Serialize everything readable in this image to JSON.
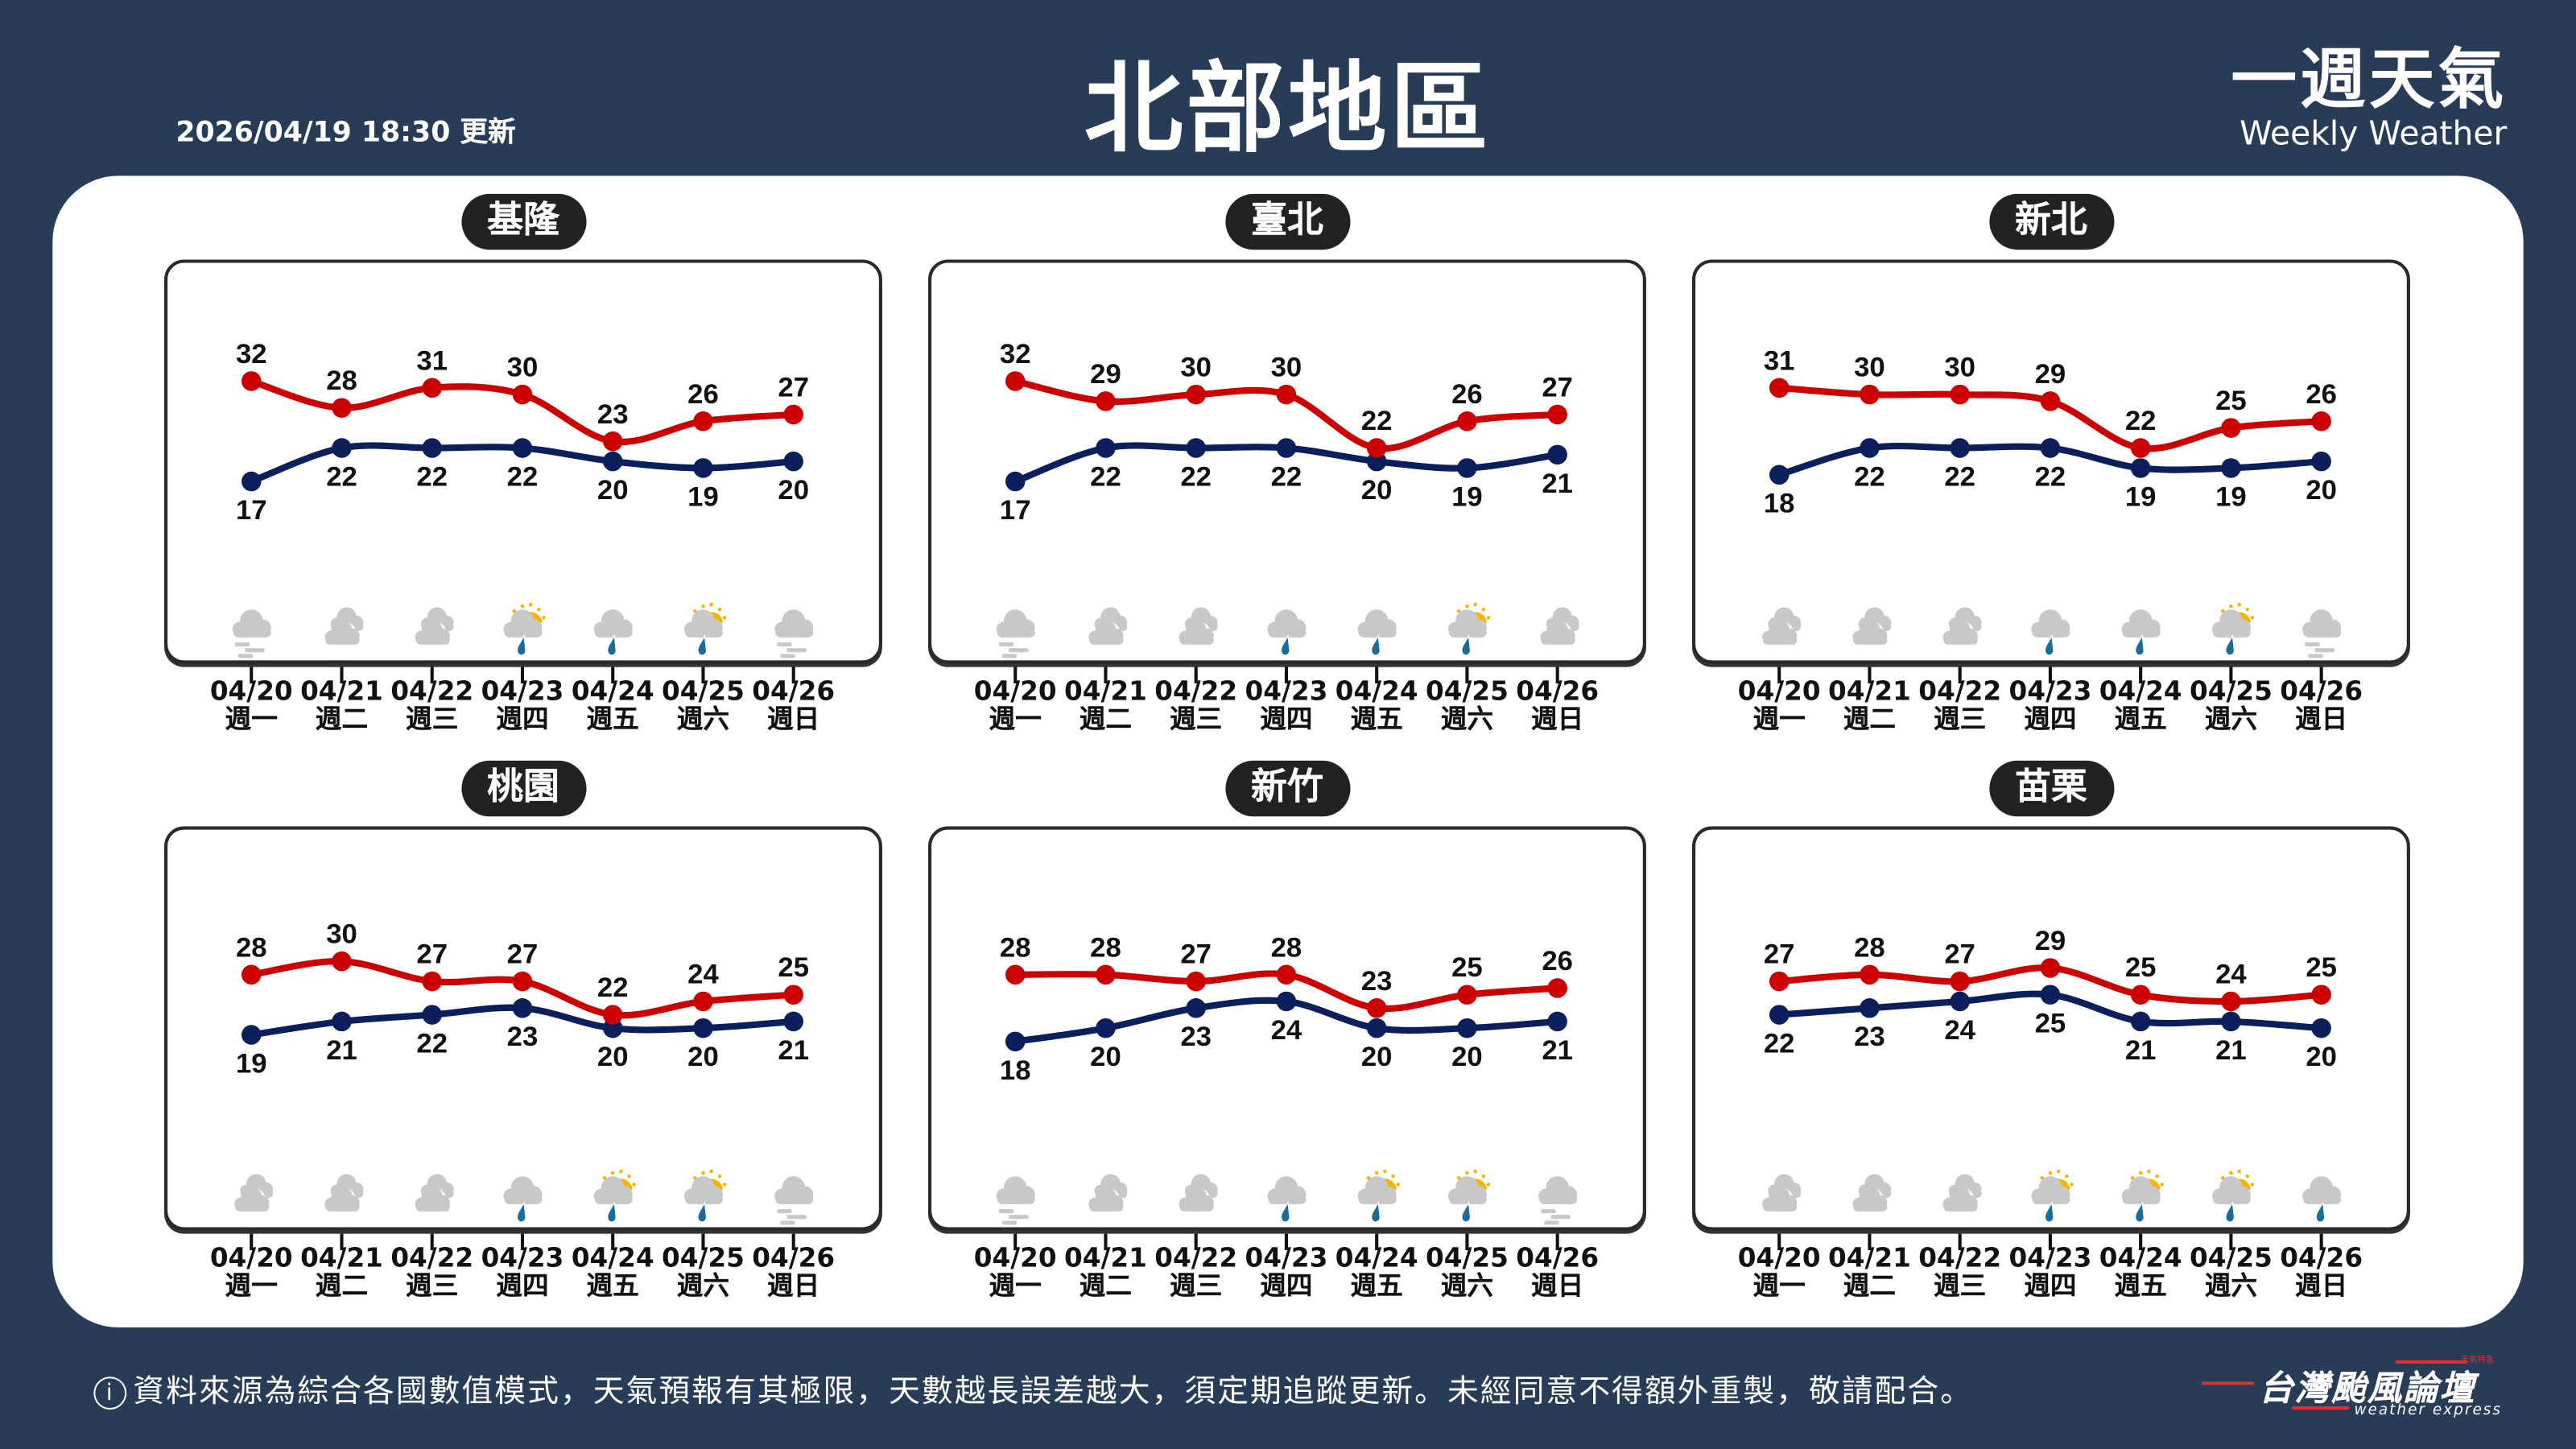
{
  "header": {
    "update_time": "2026/04/19 18:30 更新",
    "title": "北部地區",
    "brand_zh": "一週天氣",
    "brand_en": "Weekly Weather"
  },
  "days": [
    {
      "date": "04/20",
      "weekday": "週一"
    },
    {
      "date": "04/21",
      "weekday": "週二"
    },
    {
      "date": "04/22",
      "weekday": "週三"
    },
    {
      "date": "04/23",
      "weekday": "週四"
    },
    {
      "date": "04/24",
      "weekday": "週五"
    },
    {
      "date": "04/25",
      "weekday": "週六"
    },
    {
      "date": "04/26",
      "weekday": "週日"
    }
  ],
  "colors": {
    "high": "#cc0000",
    "low": "#0a1f5c",
    "cloud": "#c8c8c8",
    "rain_drop": "#1a6b9e",
    "sun": "#f5b400",
    "background": "#283c57"
  },
  "chart_data": [
    {
      "type": "line",
      "title": "基隆",
      "categories": [
        "04/20",
        "04/21",
        "04/22",
        "04/23",
        "04/24",
        "04/25",
        "04/26"
      ],
      "series": [
        {
          "values": [
            32,
            28,
            31,
            30,
            23,
            26,
            27
          ]
        },
        {
          "values": [
            17,
            22,
            22,
            22,
            20,
            19,
            20
          ]
        }
      ],
      "icons": [
        "fog-cloud-icon",
        "cloudy-icon",
        "cloudy-icon",
        "sun-rain-icon",
        "rain-icon",
        "sun-rain-icon",
        "fog-cloud-icon"
      ]
    },
    {
      "type": "line",
      "title": "臺北",
      "categories": [
        "04/20",
        "04/21",
        "04/22",
        "04/23",
        "04/24",
        "04/25",
        "04/26"
      ],
      "series": [
        {
          "values": [
            32,
            29,
            30,
            30,
            22,
            26,
            27
          ]
        },
        {
          "values": [
            17,
            22,
            22,
            22,
            20,
            19,
            21
          ]
        }
      ],
      "icons": [
        "fog-cloud-icon",
        "cloudy-icon",
        "cloudy-icon",
        "rain-icon",
        "rain-icon",
        "sun-rain-icon",
        "cloudy-icon"
      ]
    },
    {
      "type": "line",
      "title": "新北",
      "categories": [
        "04/20",
        "04/21",
        "04/22",
        "04/23",
        "04/24",
        "04/25",
        "04/26"
      ],
      "series": [
        {
          "values": [
            31,
            30,
            30,
            29,
            22,
            25,
            26
          ]
        },
        {
          "values": [
            18,
            22,
            22,
            22,
            19,
            19,
            20
          ]
        }
      ],
      "icons": [
        "cloudy-icon",
        "cloudy-icon",
        "cloudy-icon",
        "rain-icon",
        "rain-icon",
        "sun-rain-icon",
        "fog-cloud-icon"
      ]
    },
    {
      "type": "line",
      "title": "桃園",
      "categories": [
        "04/20",
        "04/21",
        "04/22",
        "04/23",
        "04/24",
        "04/25",
        "04/26"
      ],
      "series": [
        {
          "values": [
            28,
            30,
            27,
            27,
            22,
            24,
            25
          ]
        },
        {
          "values": [
            19,
            21,
            22,
            23,
            20,
            20,
            21
          ]
        }
      ],
      "icons": [
        "cloudy-icon",
        "cloudy-icon",
        "cloudy-icon",
        "rain-icon",
        "sun-rain-icon",
        "sun-rain-icon",
        "fog-cloud-icon"
      ]
    },
    {
      "type": "line",
      "title": "新竹",
      "categories": [
        "04/20",
        "04/21",
        "04/22",
        "04/23",
        "04/24",
        "04/25",
        "04/26"
      ],
      "series": [
        {
          "values": [
            28,
            28,
            27,
            28,
            23,
            25,
            26
          ]
        },
        {
          "values": [
            18,
            20,
            23,
            24,
            20,
            20,
            21
          ]
        }
      ],
      "icons": [
        "fog-cloud-icon",
        "cloudy-icon",
        "cloudy-icon",
        "rain-icon",
        "sun-rain-icon",
        "sun-rain-icon",
        "fog-cloud-icon"
      ]
    },
    {
      "type": "line",
      "title": "苗栗",
      "categories": [
        "04/20",
        "04/21",
        "04/22",
        "04/23",
        "04/24",
        "04/25",
        "04/26"
      ],
      "series": [
        {
          "values": [
            27,
            28,
            27,
            29,
            25,
            24,
            25
          ]
        },
        {
          "values": [
            22,
            23,
            24,
            25,
            21,
            21,
            20
          ]
        }
      ],
      "icons": [
        "cloudy-icon",
        "cloudy-icon",
        "cloudy-icon",
        "sun-rain-icon",
        "sun-rain-icon",
        "sun-rain-icon",
        "rain-icon"
      ]
    }
  ],
  "footer": {
    "info_icon": "i",
    "disclaimer": "資料來源為綜合各國數值模式，天氣預報有其極限，天數越長誤差越大，須定期追蹤更新。未經同意不得額外重製，敬請配合。",
    "logo_zh": "台灣颱風論壇",
    "logo_en": "weather express",
    "logo_tag": "天氣特急"
  }
}
